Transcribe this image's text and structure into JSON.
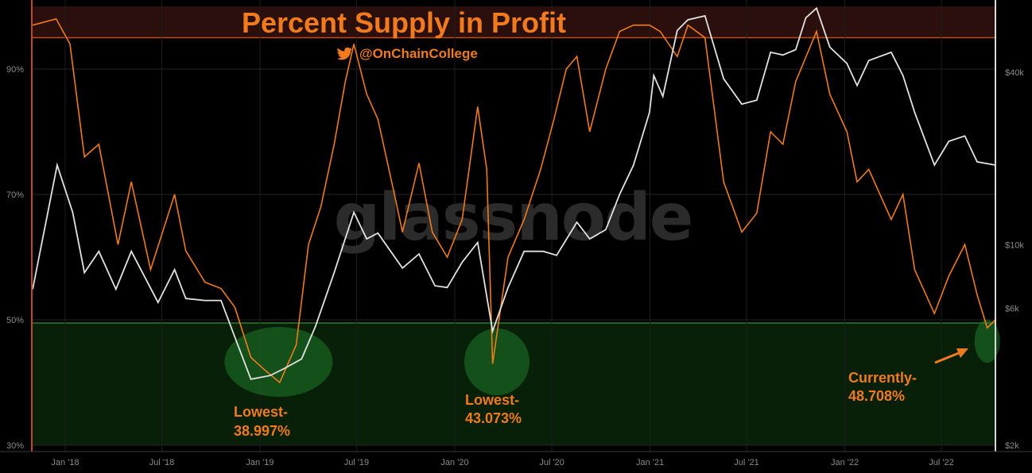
{
  "chart_data": {
    "type": "line",
    "title": "Percent Supply in Profit",
    "handle": "@OnChainCollege",
    "handle_icon": "twitter-bird-icon",
    "watermark": "glassnode",
    "x_ticks": [
      "Jan '18",
      "Jul '18",
      "Jan '19",
      "Jul '19",
      "Jan '20",
      "Jul '20",
      "Jan '21",
      "Jul '21",
      "Jan '22",
      "Jul '22"
    ],
    "x_range": [
      "2017-11",
      "2022-10"
    ],
    "y_left": {
      "ticks": [
        "30%",
        "50%",
        "70%",
        "90%"
      ],
      "range": [
        30,
        100
      ],
      "unit": "%"
    },
    "y_right": {
      "ticks": [
        "$2k",
        "$6k",
        "$10k",
        "$40k"
      ],
      "scale": "log",
      "range": [
        2000,
        68000
      ]
    },
    "zones": [
      {
        "name": "upper",
        "from": 95,
        "to": 100,
        "color": "#2b0f0c",
        "line_color": "#c04a1a"
      },
      {
        "name": "lower",
        "from": 30,
        "to": 49.5,
        "color": "#082008",
        "line_color": "#2e7a2e"
      }
    ],
    "series": [
      {
        "color": "#f07a1c",
        "axis": "left",
        "x": [
          "2017-11-01",
          "2017-12-15",
          "2018-01-10",
          "2018-02-06",
          "2018-03-05",
          "2018-04-10",
          "2018-05-05",
          "2018-06-10",
          "2018-07-25",
          "2018-08-15",
          "2018-09-20",
          "2018-10-20",
          "2018-11-15",
          "2018-12-15",
          "2019-01-10",
          "2019-02-07",
          "2019-03-10",
          "2019-04-02",
          "2019-04-25",
          "2019-05-20",
          "2019-06-10",
          "2019-06-26",
          "2019-07-20",
          "2019-08-10",
          "2019-09-10",
          "2019-09-25",
          "2019-10-26",
          "2019-11-20",
          "2019-12-18",
          "2020-01-15",
          "2020-02-13",
          "2020-03-01",
          "2020-03-12",
          "2020-04-10",
          "2020-05-10",
          "2020-06-10",
          "2020-07-05",
          "2020-07-28",
          "2020-08-17",
          "2020-09-10",
          "2020-10-10",
          "2020-11-05",
          "2020-12-01",
          "2020-12-31",
          "2021-01-20",
          "2021-02-21",
          "2021-03-13",
          "2021-04-14",
          "2021-05-19",
          "2021-06-22",
          "2021-07-20",
          "2021-08-15",
          "2021-09-07",
          "2021-10-01",
          "2021-11-09",
          "2021-12-04",
          "2022-01-05",
          "2022-01-24",
          "2022-02-15",
          "2022-03-29",
          "2022-04-20",
          "2022-05-12",
          "2022-06-18",
          "2022-07-15",
          "2022-08-14",
          "2022-09-06",
          "2022-09-25",
          "2022-10-10"
        ],
        "values": [
          97,
          98,
          94,
          76,
          78,
          62,
          72,
          58,
          70,
          61,
          56,
          55,
          52,
          44,
          42,
          40,
          46,
          62,
          68,
          78,
          88,
          94,
          86,
          82,
          70,
          64,
          75,
          64,
          60,
          66,
          84,
          74,
          43,
          60,
          66,
          74,
          82,
          90,
          92,
          80,
          90,
          96,
          97,
          97,
          96,
          92,
          97,
          95,
          72,
          64,
          67,
          80,
          78,
          88,
          96,
          86,
          80,
          72,
          74,
          66,
          70,
          58,
          51,
          57,
          62,
          54,
          48.708,
          50
        ]
      },
      {
        "color": "#e2e2e2",
        "axis": "right",
        "x": [
          "2017-11-01",
          "2017-12-17",
          "2018-01-15",
          "2018-02-06",
          "2018-03-05",
          "2018-04-06",
          "2018-05-05",
          "2018-06-24",
          "2018-07-25",
          "2018-08-15",
          "2018-09-20",
          "2018-10-20",
          "2018-11-20",
          "2018-12-15",
          "2019-01-20",
          "2019-02-15",
          "2019-03-20",
          "2019-04-15",
          "2019-05-20",
          "2019-06-26",
          "2019-07-20",
          "2019-08-10",
          "2019-09-25",
          "2019-10-26",
          "2019-11-25",
          "2019-12-18",
          "2020-01-15",
          "2020-02-13",
          "2020-03-12",
          "2020-04-10",
          "2020-05-10",
          "2020-06-15",
          "2020-07-10",
          "2020-08-17",
          "2020-09-10",
          "2020-10-10",
          "2020-11-05",
          "2020-12-01",
          "2020-12-31",
          "2021-01-08",
          "2021-01-25",
          "2021-02-21",
          "2021-03-13",
          "2021-04-14",
          "2021-05-19",
          "2021-06-22",
          "2021-07-20",
          "2021-08-15",
          "2021-09-07",
          "2021-10-01",
          "2021-10-20",
          "2021-11-09",
          "2021-12-04",
          "2022-01-05",
          "2022-01-24",
          "2022-02-15",
          "2022-03-29",
          "2022-04-20",
          "2022-05-12",
          "2022-06-18",
          "2022-07-15",
          "2022-08-14",
          "2022-09-06",
          "2022-10-10"
        ],
        "values": [
          7000,
          19000,
          13000,
          8000,
          9500,
          7000,
          9500,
          6300,
          8200,
          6500,
          6400,
          6400,
          4500,
          3400,
          3500,
          3700,
          4000,
          5200,
          8000,
          13000,
          10500,
          11000,
          8300,
          9300,
          7200,
          7100,
          8700,
          10200,
          5000,
          7100,
          9500,
          9500,
          9200,
          12000,
          10500,
          11300,
          15000,
          19000,
          29000,
          39000,
          33000,
          56000,
          61000,
          63000,
          38000,
          31000,
          32000,
          47000,
          46000,
          48000,
          62000,
          67000,
          49000,
          43000,
          36000,
          44000,
          47000,
          39000,
          29000,
          19000,
          23000,
          24000,
          19500,
          19000
        ]
      }
    ],
    "annotations": [
      {
        "line1": "Lowest-",
        "line2": "38.997%",
        "date": "2019-02-05"
      },
      {
        "line1": "Lowest-",
        "line2": "43.073%",
        "date": "2020-03-20"
      },
      {
        "line1": "Currently-",
        "line2": "48.708%",
        "date": "2022-09-25"
      }
    ],
    "grid": true
  }
}
